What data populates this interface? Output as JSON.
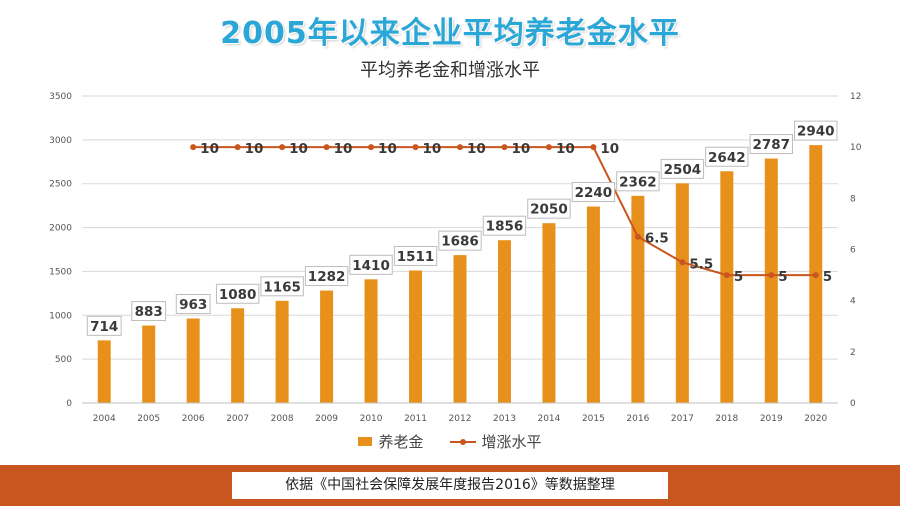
{
  "title": "2005年以来企业平均养老金水平",
  "subtitle": "平均养老金和增涨水平",
  "footer_note": "依据《中国社会保障发展年度报告2016》等数据整理",
  "colors": {
    "bar": "#e8901c",
    "line": "#c9561e",
    "title": "#2aa7d6",
    "footer_band": "#c9561e"
  },
  "chart_data": {
    "type": "bar",
    "categories": [
      "2004",
      "2005",
      "2006",
      "2007",
      "2008",
      "2009",
      "2010",
      "2011",
      "2012",
      "2013",
      "2014",
      "2015",
      "2016",
      "2017",
      "2018",
      "2019",
      "2020"
    ],
    "series": [
      {
        "name": "养老金",
        "type": "bar",
        "axis": "left",
        "values": [
          714,
          883,
          963,
          1080,
          1165,
          1282,
          1410,
          1511,
          1686,
          1856,
          2050,
          2240,
          2362,
          2504,
          2642,
          2787,
          2940
        ],
        "labels": [
          "714",
          "883",
          "963",
          "1080",
          "1165",
          "1282",
          "1410",
          "1511",
          "1686",
          "1856",
          "2050",
          "2240",
          "2362",
          "2504",
          "2642",
          "2787",
          "2940"
        ]
      },
      {
        "name": "增涨水平",
        "type": "line",
        "axis": "right",
        "values": [
          null,
          null,
          10,
          10,
          10,
          10,
          10,
          10,
          10,
          10,
          10,
          10,
          6.5,
          5.5,
          5,
          5,
          5
        ],
        "labels": [
          null,
          null,
          "10",
          "10",
          "10",
          "10",
          "10",
          "10",
          "10",
          "10",
          "10",
          "10",
          "6.5",
          "5.5",
          "5",
          "5",
          "5"
        ]
      }
    ],
    "left_axis": {
      "min": 0,
      "max": 3500,
      "ticks": [
        "0",
        "500",
        "1000",
        "1500",
        "2000",
        "2500",
        "3000",
        "3500"
      ]
    },
    "right_axis": {
      "min": 0,
      "max": 12,
      "ticks": [
        "0",
        "2",
        "4",
        "6",
        "8",
        "10",
        "12"
      ]
    },
    "grid": true,
    "legend_position": "bottom"
  }
}
